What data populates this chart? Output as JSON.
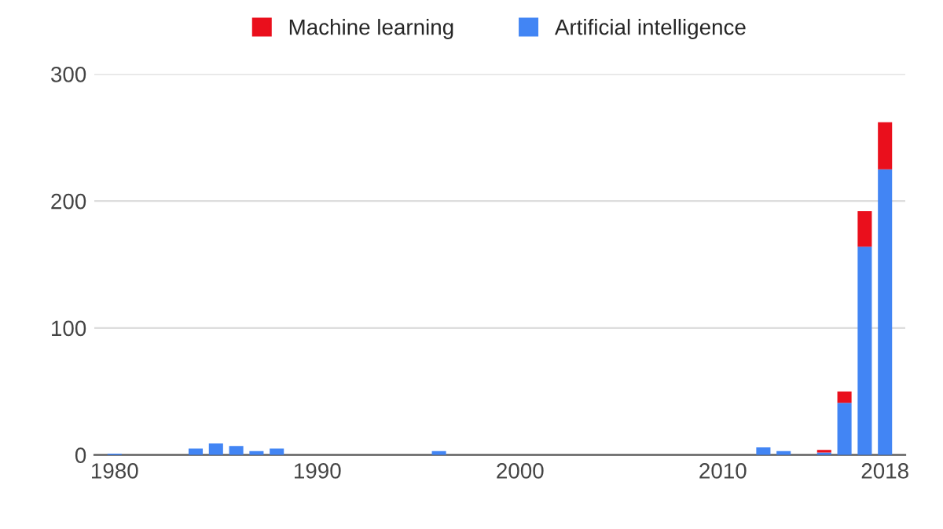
{
  "chart_data": {
    "type": "bar",
    "stacked": true,
    "x": [
      1980,
      1981,
      1982,
      1983,
      1984,
      1985,
      1986,
      1987,
      1988,
      1989,
      1990,
      1991,
      1992,
      1993,
      1994,
      1995,
      1996,
      1997,
      1998,
      1999,
      2000,
      2001,
      2002,
      2003,
      2004,
      2005,
      2006,
      2007,
      2008,
      2009,
      2010,
      2011,
      2012,
      2013,
      2014,
      2015,
      2016,
      2017,
      2018
    ],
    "series": [
      {
        "name": "Artificial intelligence",
        "color": "#4285f4",
        "values": [
          1,
          null,
          null,
          null,
          5,
          9,
          7,
          3,
          5,
          null,
          null,
          null,
          null,
          null,
          null,
          null,
          3,
          null,
          null,
          null,
          null,
          null,
          null,
          null,
          null,
          null,
          null,
          null,
          null,
          null,
          null,
          null,
          6,
          3,
          null,
          2,
          41,
          164,
          225
        ]
      },
      {
        "name": "Machine learning",
        "color": "#ea0f1c",
        "values": [
          null,
          null,
          null,
          null,
          null,
          null,
          null,
          null,
          null,
          null,
          null,
          null,
          null,
          null,
          null,
          null,
          null,
          null,
          null,
          null,
          null,
          null,
          null,
          null,
          null,
          null,
          null,
          null,
          null,
          null,
          null,
          null,
          null,
          null,
          null,
          2,
          9,
          28,
          37
        ]
      }
    ],
    "xlim": [
      1979,
      2019
    ],
    "xticks": [
      1980,
      1990,
      2000,
      2010,
      2018
    ],
    "ylim": [
      0,
      300
    ],
    "yticks": [
      0,
      100,
      200,
      300
    ],
    "grid": "y",
    "legend": "top"
  }
}
